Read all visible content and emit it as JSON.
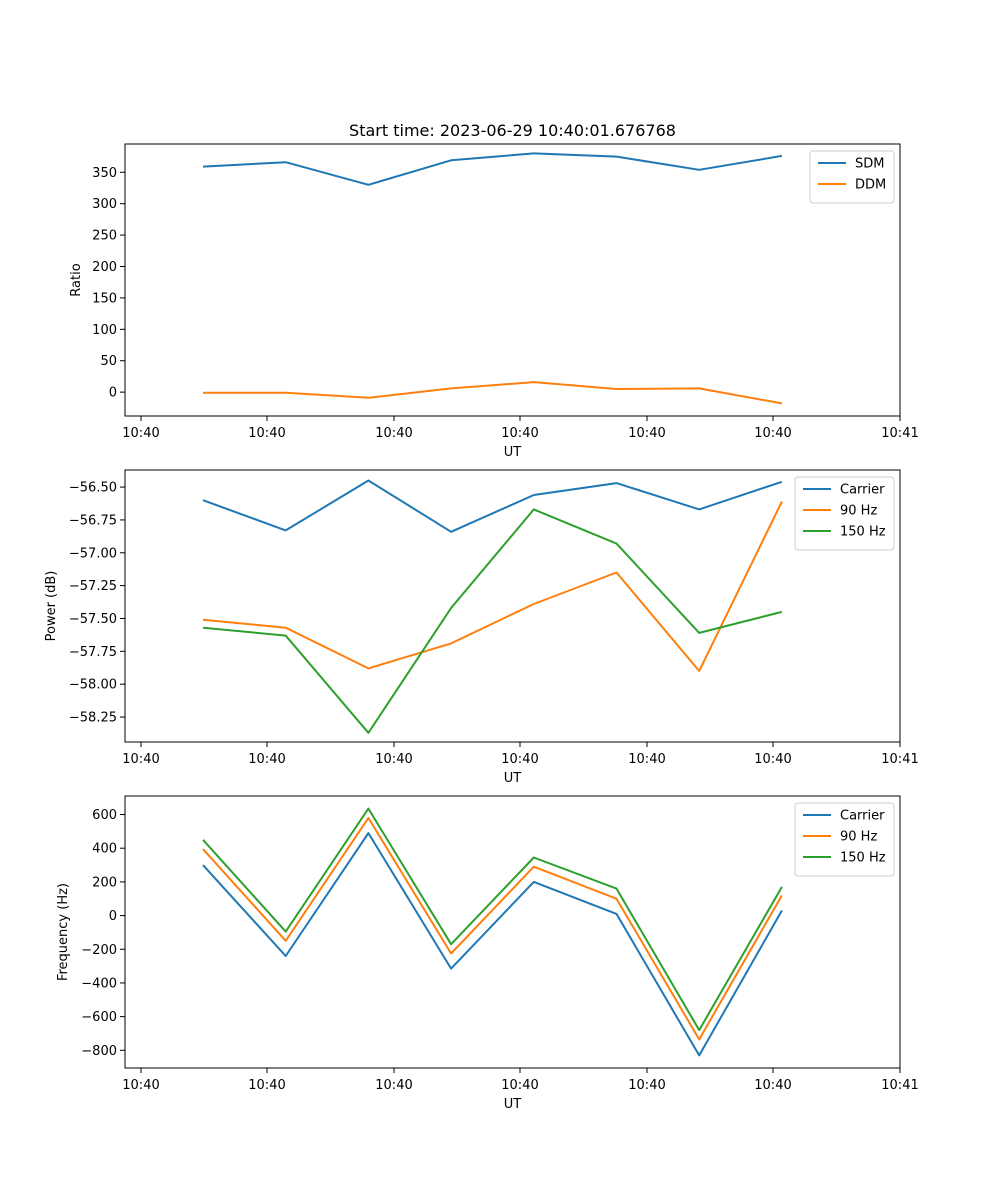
{
  "chart_data": [
    {
      "type": "line",
      "title": "Start time: 2023-06-29 10:40:01.676768",
      "xlabel": "UT",
      "ylabel": "Ratio",
      "x_tick_labels": [
        "10:40",
        "10:40",
        "10:40",
        "10:40",
        "10:40",
        "10:40",
        "10:41"
      ],
      "y_ticks": [
        0,
        50,
        100,
        150,
        200,
        250,
        300,
        350
      ],
      "ylim": [
        -38,
        395
      ],
      "legend_position": "top-right",
      "grid": false,
      "x_index": [
        1,
        2,
        3,
        4,
        5,
        6,
        7,
        8
      ],
      "series": [
        {
          "name": "SDM",
          "color": "#1f77b4",
          "values": [
            359,
            366,
            330,
            369,
            380,
            375,
            354,
            376
          ]
        },
        {
          "name": "DDM",
          "color": "#ff7f0e",
          "values": [
            -1,
            -1,
            -9,
            6,
            16,
            5,
            6,
            -18
          ]
        }
      ]
    },
    {
      "type": "line",
      "title": "",
      "xlabel": "UT",
      "ylabel": "Power (dB)",
      "x_tick_labels": [
        "10:40",
        "10:40",
        "10:40",
        "10:40",
        "10:40",
        "10:40",
        "10:41"
      ],
      "y_ticks": [
        -58.25,
        -58.0,
        -57.75,
        -57.5,
        -57.25,
        -57.0,
        -56.75,
        -56.5
      ],
      "y_tick_labels": [
        "−58.25",
        "−58.00",
        "−57.75",
        "−57.50",
        "−57.25",
        "−57.00",
        "−56.75",
        "−56.50"
      ],
      "ylim": [
        -58.44,
        -56.37
      ],
      "legend_position": "top-right",
      "grid": false,
      "x_index": [
        1,
        2,
        3,
        4,
        5,
        6,
        7,
        8
      ],
      "series": [
        {
          "name": "Carrier",
          "color": "#1f77b4",
          "values": [
            -56.6,
            -56.83,
            -56.45,
            -56.84,
            -56.56,
            -56.47,
            -56.67,
            -56.46
          ]
        },
        {
          "name": "90 Hz",
          "color": "#ff7f0e",
          "values": [
            -57.51,
            -57.57,
            -57.88,
            -57.69,
            -57.39,
            -57.15,
            -57.9,
            -56.61
          ]
        },
        {
          "name": "150 Hz",
          "color": "#2ca02c",
          "values": [
            -57.57,
            -57.63,
            -58.37,
            -57.42,
            -56.67,
            -56.93,
            -57.61,
            -57.45
          ]
        }
      ]
    },
    {
      "type": "line",
      "title": "",
      "xlabel": "UT",
      "ylabel": "Frequency (Hz)",
      "x_tick_labels": [
        "10:40",
        "10:40",
        "10:40",
        "10:40",
        "10:40",
        "10:40",
        "10:41"
      ],
      "y_ticks": [
        -800,
        -600,
        -400,
        -200,
        0,
        200,
        400,
        600
      ],
      "y_tick_labels": [
        "−800",
        "−600",
        "−400",
        "−200",
        "0",
        "200",
        "400",
        "600"
      ],
      "ylim": [
        -905,
        710
      ],
      "legend_position": "top-right",
      "grid": false,
      "x_index": [
        1,
        2,
        3,
        4,
        5,
        6,
        7,
        8
      ],
      "series": [
        {
          "name": "Carrier",
          "color": "#1f77b4",
          "values": [
            300,
            -240,
            490,
            -315,
            200,
            10,
            -830,
            30
          ]
        },
        {
          "name": "90 Hz",
          "color": "#ff7f0e",
          "values": [
            395,
            -150,
            580,
            -225,
            290,
            100,
            -735,
            120
          ]
        },
        {
          "name": "150 Hz",
          "color": "#2ca02c",
          "values": [
            450,
            -95,
            635,
            -170,
            345,
            160,
            -680,
            170
          ]
        }
      ]
    }
  ]
}
